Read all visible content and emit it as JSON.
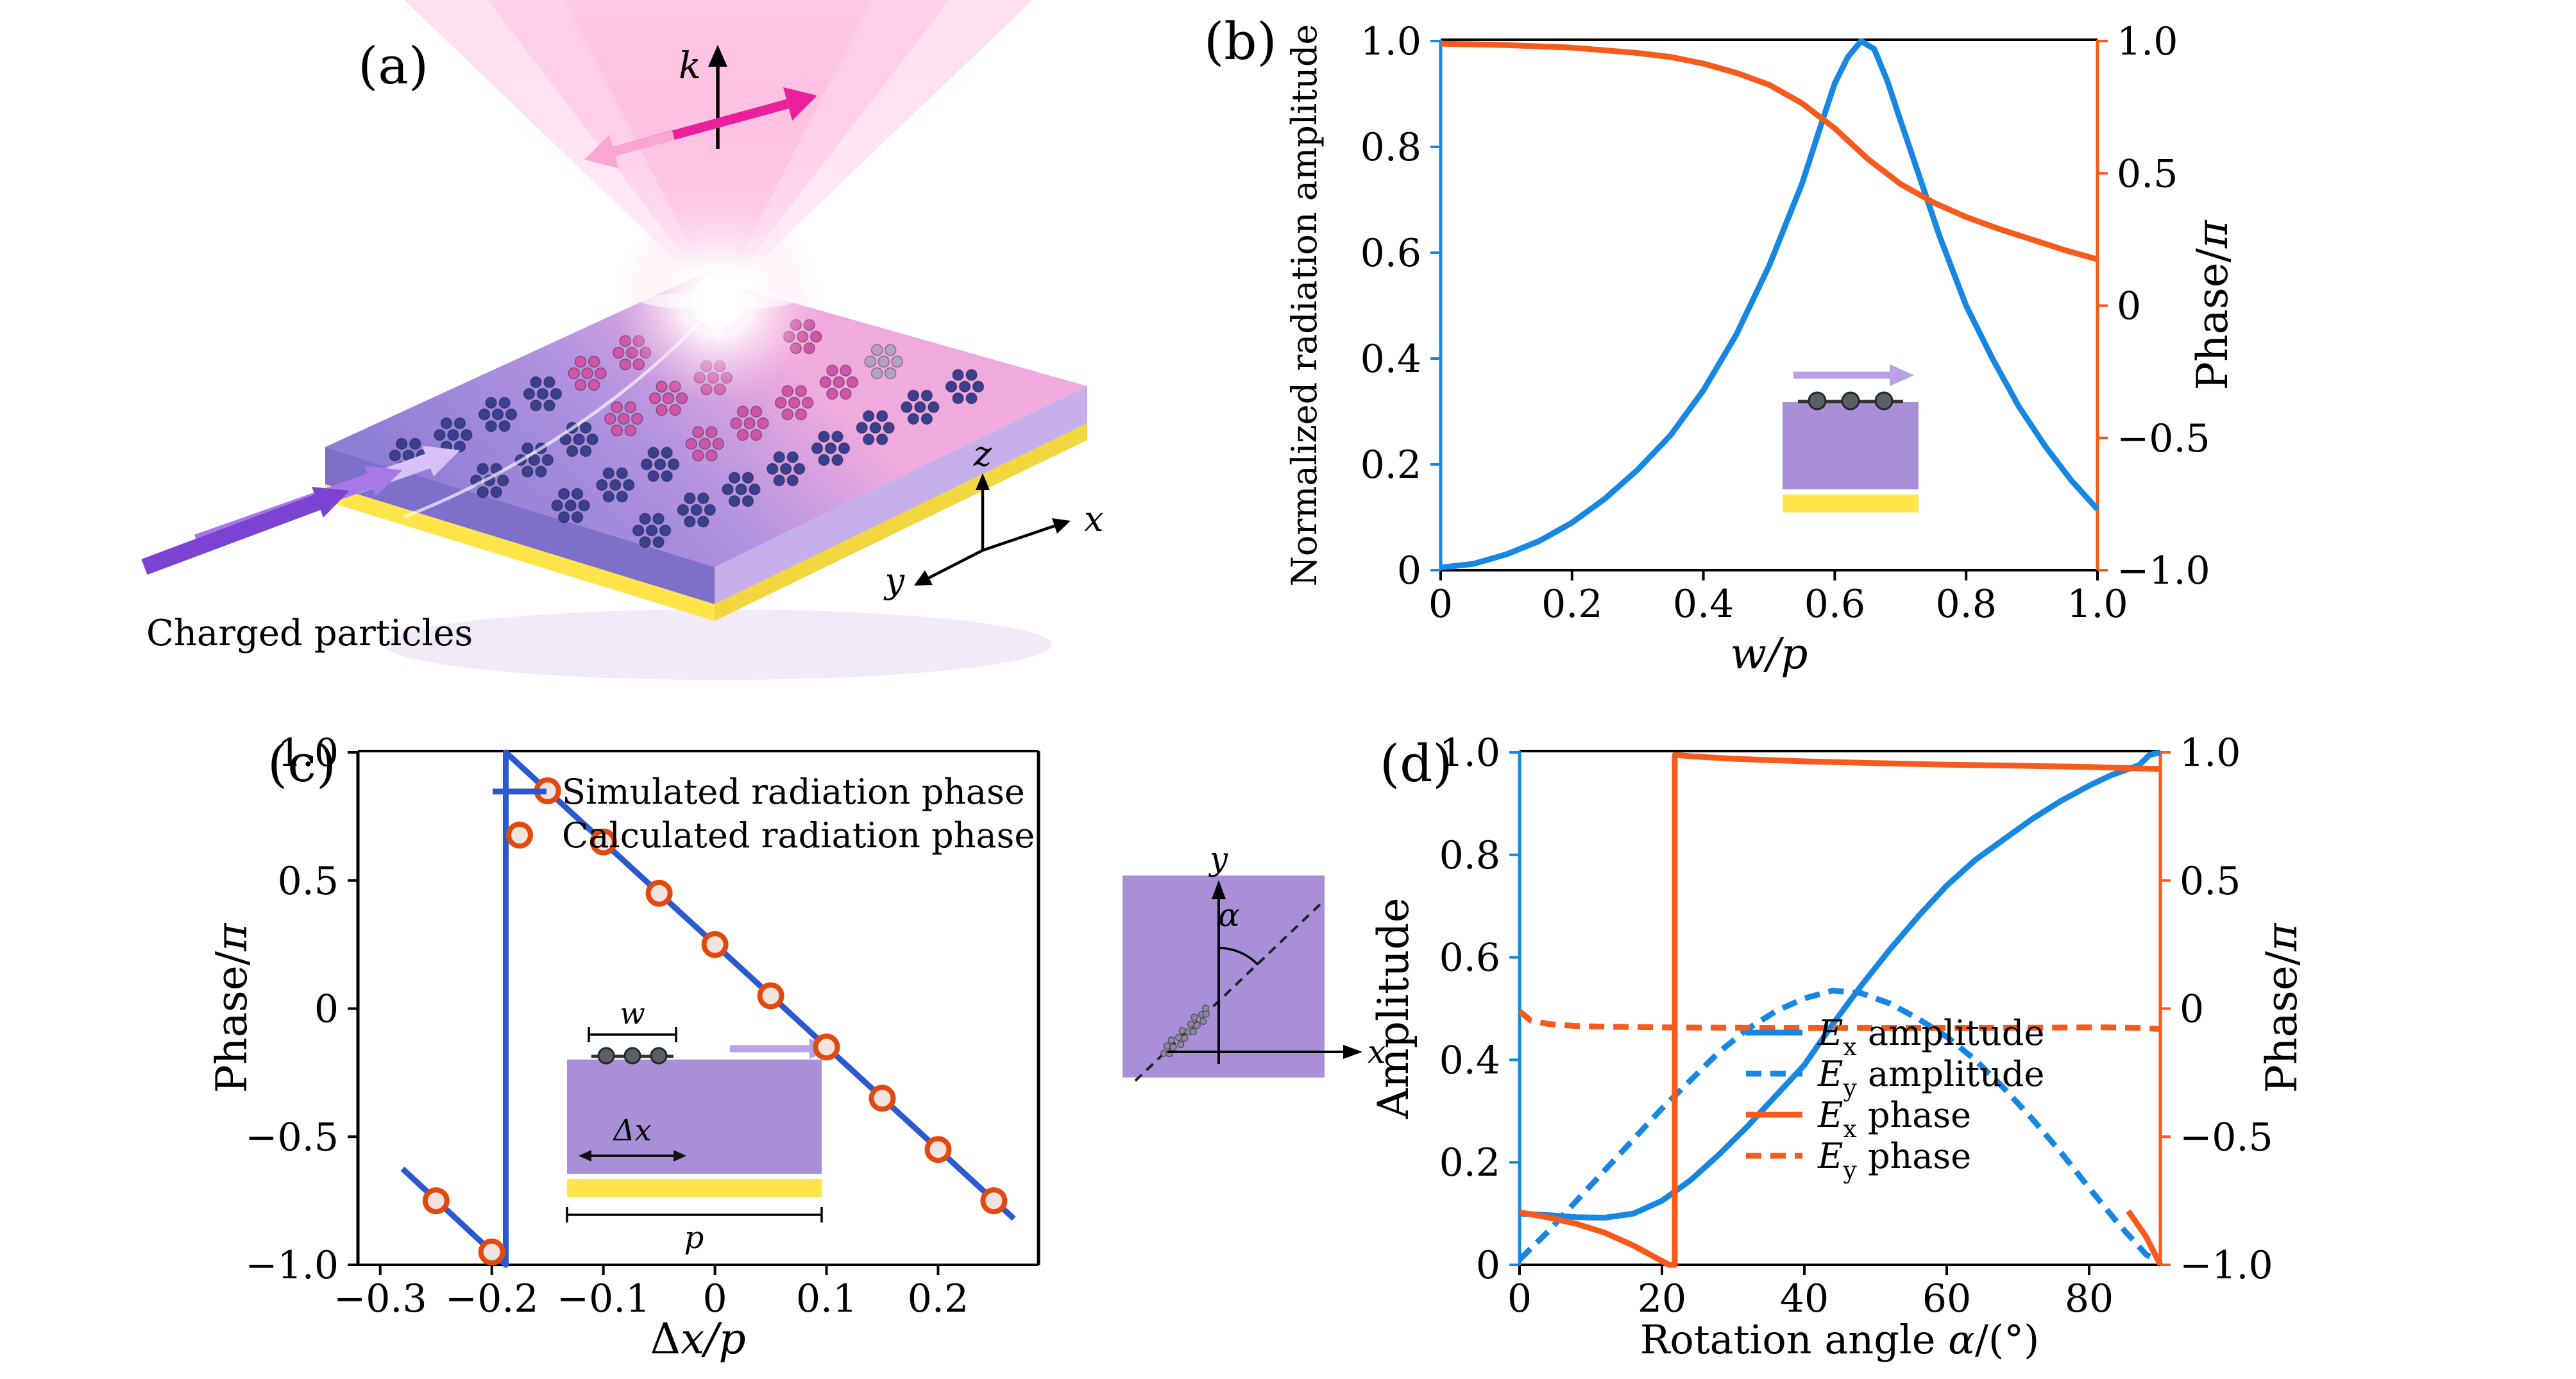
{
  "panels": {
    "a": {
      "label": "(a)",
      "k_label": "k",
      "axis_x": "x",
      "axis_y": "y",
      "axis_z": "z",
      "caption": "Charged particles"
    },
    "b": {
      "label": "(b)"
    },
    "c": {
      "label": "(c)"
    },
    "d": {
      "label": "(d)"
    },
    "rotation_inset": {
      "axis_x": "x",
      "axis_y": "y",
      "angle_label": "α"
    }
  },
  "insets": {
    "c_unitcell": {
      "w_label": "w",
      "dx_label": "Δx",
      "p_label": "p"
    }
  },
  "colors": {
    "blue": "#1787e4",
    "deep_blue": "#2b59d0",
    "orange": "#f85a1c",
    "circle_edge": "#e2490e",
    "circle_fill": "#f3e3de",
    "purple": "#a88fd8",
    "yellow": "#ffe44a",
    "arrow_purple": "#b9a0e8"
  },
  "chart_data": [
    {
      "id": "b",
      "type": "line",
      "xlim": [
        0,
        1
      ],
      "xticks": [
        [
          0,
          "0"
        ],
        [
          0.2,
          "0.2"
        ],
        [
          0.4,
          "0.4"
        ],
        [
          0.6,
          "0.6"
        ],
        [
          0.8,
          "0.8"
        ],
        [
          1,
          "1.0"
        ]
      ],
      "xlabel_parts": [
        {
          "t": "w/p",
          "i": 1
        }
      ],
      "left": {
        "label_parts": [
          {
            "t": "Normalized radiation amplitude"
          }
        ],
        "lim": [
          0,
          1
        ],
        "ticks": [
          [
            0,
            "0"
          ],
          [
            0.2,
            "0.2"
          ],
          [
            0.4,
            "0.4"
          ],
          [
            0.6,
            "0.6"
          ],
          [
            0.8,
            "0.8"
          ],
          [
            1,
            "1.0"
          ]
        ],
        "color": "blue"
      },
      "right": {
        "label_parts": [
          {
            "t": "Phase/"
          },
          {
            "t": "π",
            "i": 1
          }
        ],
        "lim": [
          -1,
          1
        ],
        "ticks": [
          [
            1,
            "1.0"
          ],
          [
            0.5,
            "0.5"
          ],
          [
            0,
            "0"
          ],
          [
            -0.5,
            "−0.5"
          ],
          [
            -1,
            "−1.0"
          ]
        ],
        "color": "orange"
      },
      "series": [
        {
          "name": "normalized-radiation-amplitude",
          "axis": "left",
          "color": "blue",
          "width": 9,
          "points": [
            [
              0,
              0.005
            ],
            [
              0.05,
              0.012
            ],
            [
              0.1,
              0.03
            ],
            [
              0.15,
              0.055
            ],
            [
              0.2,
              0.09
            ],
            [
              0.25,
              0.135
            ],
            [
              0.3,
              0.19
            ],
            [
              0.35,
              0.255
            ],
            [
              0.4,
              0.34
            ],
            [
              0.45,
              0.445
            ],
            [
              0.5,
              0.575
            ],
            [
              0.55,
              0.73
            ],
            [
              0.58,
              0.845
            ],
            [
              0.6,
              0.92
            ],
            [
              0.62,
              0.97
            ],
            [
              0.64,
              1.0
            ],
            [
              0.66,
              0.985
            ],
            [
              0.68,
              0.925
            ],
            [
              0.7,
              0.85
            ],
            [
              0.73,
              0.74
            ],
            [
              0.76,
              0.63
            ],
            [
              0.8,
              0.5
            ],
            [
              0.84,
              0.4
            ],
            [
              0.88,
              0.31
            ],
            [
              0.92,
              0.235
            ],
            [
              0.96,
              0.17
            ],
            [
              1,
              0.115
            ]
          ]
        },
        {
          "name": "radiation-phase",
          "axis": "right",
          "color": "orange",
          "width": 9,
          "points": [
            [
              0,
              0.99
            ],
            [
              0.1,
              0.985
            ],
            [
              0.2,
              0.975
            ],
            [
              0.3,
              0.955
            ],
            [
              0.35,
              0.94
            ],
            [
              0.4,
              0.915
            ],
            [
              0.45,
              0.88
            ],
            [
              0.5,
              0.835
            ],
            [
              0.55,
              0.765
            ],
            [
              0.6,
              0.67
            ],
            [
              0.65,
              0.555
            ],
            [
              0.7,
              0.46
            ],
            [
              0.75,
              0.39
            ],
            [
              0.8,
              0.335
            ],
            [
              0.85,
              0.29
            ],
            [
              0.9,
              0.25
            ],
            [
              0.95,
              0.21
            ],
            [
              1,
              0.175
            ]
          ]
        }
      ]
    },
    {
      "id": "c",
      "type": "line+scatter",
      "xlim": [
        -0.32,
        0.29
      ],
      "xticks": [
        [
          -0.3,
          "−0.3"
        ],
        [
          -0.2,
          "−0.2"
        ],
        [
          -0.1,
          "−0.1"
        ],
        [
          0,
          "0"
        ],
        [
          0.1,
          "0.1"
        ],
        [
          0.2,
          "0.2"
        ]
      ],
      "xlabel_parts": [
        {
          "t": "Δ"
        },
        {
          "t": "x/p",
          "i": 1
        }
      ],
      "left": {
        "label_parts": [
          {
            "t": "Phase/"
          },
          {
            "t": "π",
            "i": 1
          }
        ],
        "lim": [
          -1,
          1
        ],
        "ticks": [
          [
            1,
            "1.0"
          ],
          [
            0.5,
            "0.5"
          ],
          [
            0,
            "0"
          ],
          [
            -0.5,
            "−0.5"
          ],
          [
            -1,
            "−1.0"
          ]
        ],
        "color": "black"
      },
      "series": [
        {
          "name": "simulated-radiation-phase",
          "axis": "left",
          "color": "deep_blue",
          "width": 9,
          "points": [
            [
              -0.28,
              -0.625
            ],
            [
              -0.1875,
              -1
            ],
            [
              -0.1875,
              1
            ],
            [
              0.268,
              -0.82
            ]
          ]
        }
      ],
      "scatter": [
        {
          "name": "calculated-radiation-phase",
          "axis": "left",
          "edge": "circle_edge",
          "fill": "circle_fill",
          "r": 17,
          "stroke_width": 8,
          "points": [
            [
              -0.25,
              -0.75
            ],
            [
              -0.2,
              -0.95
            ],
            [
              -0.15,
              0.85
            ],
            [
              -0.1,
              0.65
            ],
            [
              -0.05,
              0.45
            ],
            [
              0,
              0.25
            ],
            [
              0.05,
              0.05
            ],
            [
              0.1,
              -0.15
            ],
            [
              0.15,
              -0.35
            ],
            [
              0.2,
              -0.55
            ],
            [
              0.25,
              -0.75
            ]
          ]
        }
      ],
      "legend": {
        "items": [
          {
            "swatch": "line",
            "color": "deep_blue",
            "label_parts": [
              {
                "t": "Simulated radiation phase"
              }
            ]
          },
          {
            "swatch": "circle",
            "edge": "circle_edge",
            "fill": "circle_fill",
            "label_parts": [
              {
                "t": "Calculated radiation phase"
              }
            ]
          }
        ]
      }
    },
    {
      "id": "d",
      "type": "line",
      "xlim": [
        0,
        90
      ],
      "xticks": [
        [
          0,
          "0"
        ],
        [
          20,
          "20"
        ],
        [
          40,
          "40"
        ],
        [
          60,
          "60"
        ],
        [
          80,
          "80"
        ]
      ],
      "xlabel_parts": [
        {
          "t": "Rotation angle "
        },
        {
          "t": "α",
          "i": 1
        },
        {
          "t": "/(°)"
        }
      ],
      "left": {
        "label_parts": [
          {
            "t": "Amplitude"
          }
        ],
        "lim": [
          0,
          1
        ],
        "ticks": [
          [
            0,
            "0"
          ],
          [
            0.2,
            "0.2"
          ],
          [
            0.4,
            "0.4"
          ],
          [
            0.6,
            "0.6"
          ],
          [
            0.8,
            "0.8"
          ],
          [
            1,
            "1.0"
          ]
        ],
        "color": "blue"
      },
      "right": {
        "label_parts": [
          {
            "t": "Phase/"
          },
          {
            "t": "π",
            "i": 1
          }
        ],
        "lim": [
          -1,
          1
        ],
        "ticks": [
          [
            1,
            "1.0"
          ],
          [
            0.5,
            "0.5"
          ],
          [
            0,
            "0"
          ],
          [
            -0.5,
            "−0.5"
          ],
          [
            -1,
            "−1.0"
          ]
        ],
        "color": "orange"
      },
      "series": [
        {
          "name": "Ex-amplitude",
          "axis": "left",
          "color": "blue",
          "width": 9,
          "points": [
            [
              0,
              0.1
            ],
            [
              4,
              0.097
            ],
            [
              8,
              0.093
            ],
            [
              12,
              0.092
            ],
            [
              16,
              0.1
            ],
            [
              20,
              0.125
            ],
            [
              24,
              0.165
            ],
            [
              28,
              0.215
            ],
            [
              32,
              0.27
            ],
            [
              36,
              0.33
            ],
            [
              40,
              0.39
            ],
            [
              44,
              0.47
            ],
            [
              48,
              0.545
            ],
            [
              52,
              0.615
            ],
            [
              56,
              0.68
            ],
            [
              60,
              0.74
            ],
            [
              64,
              0.79
            ],
            [
              68,
              0.83
            ],
            [
              72,
              0.87
            ],
            [
              76,
              0.905
            ],
            [
              80,
              0.935
            ],
            [
              83,
              0.955
            ],
            [
              85,
              0.965
            ],
            [
              87,
              0.975
            ],
            [
              88.5,
              0.995
            ],
            [
              90,
              1.0
            ]
          ]
        },
        {
          "name": "Ey-amplitude",
          "axis": "left",
          "color": "blue",
          "width": 9,
          "dash": [
            24,
            14
          ],
          "points": [
            [
              0,
              0.01
            ],
            [
              4,
              0.065
            ],
            [
              8,
              0.125
            ],
            [
              12,
              0.185
            ],
            [
              16,
              0.245
            ],
            [
              20,
              0.305
            ],
            [
              24,
              0.36
            ],
            [
              28,
              0.415
            ],
            [
              32,
              0.46
            ],
            [
              36,
              0.495
            ],
            [
              40,
              0.52
            ],
            [
              44,
              0.535
            ],
            [
              48,
              0.53
            ],
            [
              52,
              0.51
            ],
            [
              56,
              0.48
            ],
            [
              60,
              0.445
            ],
            [
              64,
              0.4
            ],
            [
              68,
              0.345
            ],
            [
              72,
              0.285
            ],
            [
              76,
              0.22
            ],
            [
              80,
              0.15
            ],
            [
              84,
              0.082
            ],
            [
              88,
              0.02
            ],
            [
              90,
              0.005
            ]
          ]
        },
        {
          "name": "Ex-phase",
          "axis": "right",
          "color": "orange",
          "width": 9,
          "points": [
            [
              0,
              -0.795
            ],
            [
              4,
              -0.815
            ],
            [
              8,
              -0.84
            ],
            [
              12,
              -0.875
            ],
            [
              16,
              -0.925
            ],
            [
              19,
              -0.97
            ],
            [
              21,
              -1.0
            ],
            [
              21.8,
              -1.0
            ],
            [
              21.8,
              0.99
            ],
            [
              24,
              0.985
            ],
            [
              30,
              0.975
            ],
            [
              40,
              0.965
            ],
            [
              50,
              0.958
            ],
            [
              60,
              0.952
            ],
            [
              70,
              0.948
            ],
            [
              80,
              0.943
            ],
            [
              90,
              0.935
            ],
            null,
            [
              85.5,
              -0.79
            ],
            [
              88,
              -0.89
            ],
            [
              90,
              -1.0
            ]
          ]
        },
        {
          "name": "Ey-phase",
          "axis": "right",
          "color": "orange",
          "width": 9,
          "dash": [
            24,
            14
          ],
          "points": [
            [
              0,
              -0.01
            ],
            [
              1.5,
              -0.045
            ],
            [
              4,
              -0.06
            ],
            [
              8,
              -0.068
            ],
            [
              15,
              -0.072
            ],
            [
              25,
              -0.074
            ],
            [
              35,
              -0.075
            ],
            [
              45,
              -0.075
            ],
            [
              55,
              -0.075
            ],
            [
              65,
              -0.075
            ],
            [
              75,
              -0.074
            ],
            [
              82,
              -0.073
            ],
            [
              87,
              -0.075
            ],
            [
              90,
              -0.08
            ]
          ]
        }
      ],
      "legend": {
        "items": [
          {
            "swatch": "line",
            "color": "blue",
            "label_parts": [
              {
                "t": "E",
                "i": 1
              },
              {
                "t": "x",
                "sub": 1
              },
              {
                "t": " amplitude"
              }
            ]
          },
          {
            "swatch": "line",
            "color": "blue",
            "dash": [
              24,
              14
            ],
            "label_parts": [
              {
                "t": "E",
                "i": 1
              },
              {
                "t": "y",
                "sub": 1
              },
              {
                "t": " amplitude"
              }
            ]
          },
          {
            "swatch": "line",
            "color": "orange",
            "label_parts": [
              {
                "t": "E",
                "i": 1
              },
              {
                "t": "x",
                "sub": 1
              },
              {
                "t": " phase"
              }
            ]
          },
          {
            "swatch": "line",
            "color": "orange",
            "dash": [
              24,
              14
            ],
            "label_parts": [
              {
                "t": "E",
                "i": 1
              },
              {
                "t": "y",
                "sub": 1
              },
              {
                "t": " phase"
              }
            ]
          }
        ]
      }
    }
  ]
}
